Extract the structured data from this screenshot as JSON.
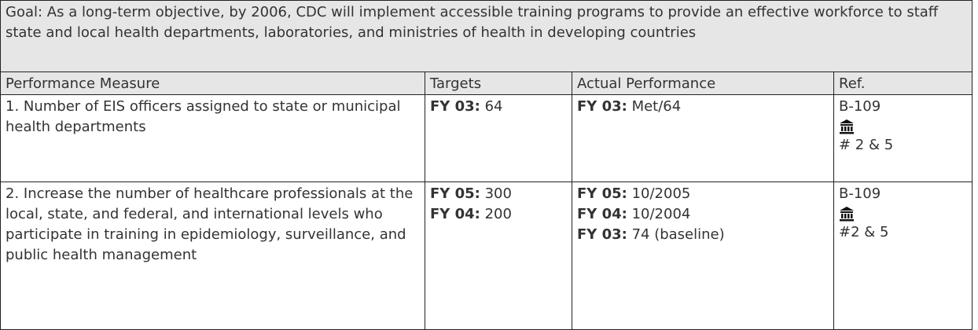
{
  "goal": "Goal: As a long-term objective, by 2006, CDC will implement accessible training programs to provide an effective workforce to staff state and local health departments, laboratories, and ministries of health in developing countries",
  "table": {
    "header": [
      "Performance Measure",
      "Targets",
      "Actual Performance",
      "Ref."
    ],
    "rows": [
      {
        "measure": "1. Number of EIS officers assigned to state or municipal health departments",
        "targets": [
          {
            "label": "FY 03:",
            "value": "64"
          }
        ],
        "actual": [
          {
            "label": "FY 03:",
            "value": "Met/64"
          }
        ],
        "ref": {
          "code": "B-109",
          "note": "# 2 & 5"
        }
      },
      {
        "measure": "2. Increase the number of healthcare professionals at the local, state, and federal, and international levels who participate in training in epidemiology, surveillance, and public health management",
        "targets": [
          {
            "label": "FY 05:",
            "value": "300"
          },
          {
            "label": "FY 04:",
            "value": "200"
          }
        ],
        "actual": [
          {
            "label": "FY 05:",
            "value": "10/2005"
          },
          {
            "label": "FY 04:",
            "value": "10/2004"
          },
          {
            "label": "FY 03:",
            "value": "74 (baseline)"
          }
        ],
        "ref": {
          "code": "B-109",
          "note": "#2 & 5"
        }
      }
    ]
  }
}
